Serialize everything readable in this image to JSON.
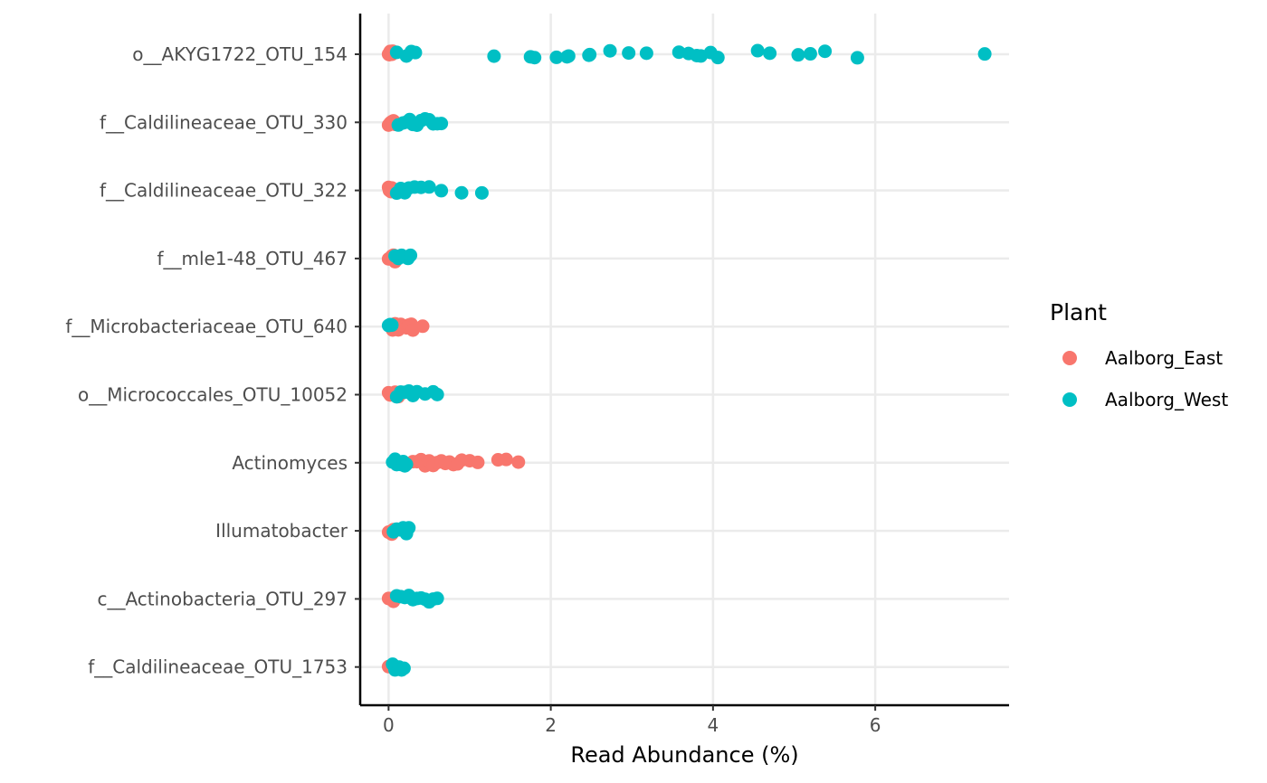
{
  "chart_data": {
    "type": "scatter",
    "xlabel": "Read Abundance (%)",
    "ylabel": "",
    "xlim": [
      -0.35,
      7.65
    ],
    "x_ticks": [
      0,
      2,
      4,
      6
    ],
    "grid": true,
    "legend_placement": "right",
    "legend_title": "Plant",
    "categories": [
      "o__AKYG1722_OTU_154",
      "f__Caldilineaceae_OTU_330",
      "f__Caldilineaceae_OTU_322",
      "f__mle1-48_OTU_467",
      "f__Microbacteriaceae_OTU_640",
      "o__Micrococcales_OTU_10052",
      "Actinomyces",
      "Illumatobacter",
      "c__Actinobacteria_OTU_297",
      "f__Caldilineaceae_OTU_1753"
    ],
    "series": [
      {
        "name": "Aalborg_East",
        "color": "#F8766D",
        "points": [
          {
            "category": 0,
            "x": [
              0.0,
              0.01,
              0.02,
              0.02,
              0.03,
              0.04,
              0.05
            ]
          },
          {
            "category": 1,
            "x": [
              0.0,
              0.02,
              0.04,
              0.06,
              0.08,
              0.1
            ]
          },
          {
            "category": 2,
            "x": [
              0.0,
              0.01,
              0.02,
              0.03,
              0.04
            ]
          },
          {
            "category": 3,
            "x": [
              0.0,
              0.02,
              0.04,
              0.06,
              0.08
            ]
          },
          {
            "category": 4,
            "x": [
              0.05,
              0.08,
              0.1,
              0.12,
              0.15,
              0.18,
              0.2,
              0.22,
              0.25,
              0.28,
              0.3,
              0.42
            ]
          },
          {
            "category": 5,
            "x": [
              0.0,
              0.02,
              0.05,
              0.08,
              0.12
            ]
          },
          {
            "category": 6,
            "x": [
              0.3,
              0.35,
              0.4,
              0.45,
              0.5,
              0.55,
              0.6,
              0.65,
              0.7,
              0.75,
              0.8,
              0.85,
              0.9,
              1.0,
              1.1,
              1.35,
              1.45,
              1.6
            ]
          },
          {
            "category": 7,
            "x": [
              0.0,
              0.02,
              0.04,
              0.06
            ]
          },
          {
            "category": 8,
            "x": [
              0.0,
              0.02,
              0.04,
              0.06
            ]
          },
          {
            "category": 9,
            "x": [
              0.0,
              0.02,
              0.04
            ]
          }
        ]
      },
      {
        "name": "Aalborg_West",
        "color": "#00BFC4",
        "points": [
          {
            "category": 0,
            "x": [
              0.1,
              0.22,
              0.28,
              0.33,
              1.3,
              1.75,
              1.8,
              2.07,
              2.2,
              2.22,
              2.47,
              2.48,
              2.73,
              2.96,
              3.18,
              3.58,
              3.7,
              3.8,
              3.85,
              3.97,
              4.06,
              4.55,
              4.7,
              5.05,
              5.2,
              5.38,
              5.78,
              7.35
            ]
          },
          {
            "category": 1,
            "x": [
              0.12,
              0.18,
              0.22,
              0.26,
              0.3,
              0.35,
              0.4,
              0.45,
              0.5,
              0.55,
              0.6,
              0.65
            ]
          },
          {
            "category": 2,
            "x": [
              0.1,
              0.15,
              0.2,
              0.25,
              0.32,
              0.4,
              0.5,
              0.65,
              0.9,
              1.15
            ]
          },
          {
            "category": 3,
            "x": [
              0.08,
              0.12,
              0.16,
              0.2,
              0.24,
              0.27
            ]
          },
          {
            "category": 4,
            "x": [
              0.0,
              0.02,
              0.04
            ]
          },
          {
            "category": 5,
            "x": [
              0.1,
              0.15,
              0.2,
              0.25,
              0.3,
              0.35,
              0.45,
              0.55,
              0.6
            ]
          },
          {
            "category": 6,
            "x": [
              0.05,
              0.08,
              0.1,
              0.12,
              0.15,
              0.18,
              0.2,
              0.22
            ]
          },
          {
            "category": 7,
            "x": [
              0.06,
              0.1,
              0.14,
              0.18,
              0.22,
              0.25
            ]
          },
          {
            "category": 8,
            "x": [
              0.1,
              0.15,
              0.2,
              0.25,
              0.3,
              0.35,
              0.4,
              0.45,
              0.5,
              0.55,
              0.6
            ]
          },
          {
            "category": 9,
            "x": [
              0.05,
              0.08,
              0.1,
              0.13,
              0.16,
              0.19
            ]
          }
        ]
      }
    ]
  }
}
